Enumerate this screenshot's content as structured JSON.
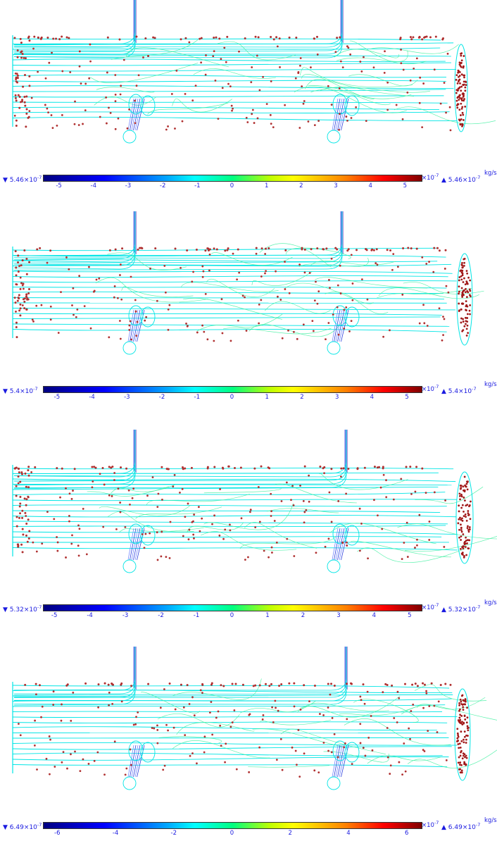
{
  "panels": [
    {
      "min_label": "5.46×10",
      "max_label": "5.46×10",
      "exponent": "-7",
      "axis_exponent": "×10",
      "unit": "kg/s",
      "ticks": [
        "-5",
        "-4",
        "-3",
        "-2",
        "-1",
        "0",
        "1",
        "2",
        "3",
        "4",
        "5"
      ],
      "tick_positions": [
        -5,
        -4,
        -3,
        -2,
        -1,
        0,
        1,
        2,
        3,
        4,
        5
      ],
      "range": [
        -5.46,
        5.46
      ]
    },
    {
      "min_label": "5.4×10",
      "max_label": "5.4×10",
      "exponent": "-7",
      "axis_exponent": "×10",
      "unit": "kg/s",
      "ticks": [
        "-5",
        "-4",
        "-3",
        "-2",
        "-1",
        "0",
        "1",
        "2",
        "3",
        "4",
        "5"
      ],
      "tick_positions": [
        -5,
        -4,
        -3,
        -2,
        -1,
        0,
        1,
        2,
        3,
        4,
        5
      ],
      "range": [
        -5.4,
        5.4
      ]
    },
    {
      "min_label": "5.32×10",
      "max_label": "5.32×10",
      "exponent": "-7",
      "axis_exponent": "×10",
      "unit": "kg/s",
      "ticks": [
        "-5",
        "-4",
        "-3",
        "-2",
        "-1",
        "0",
        "1",
        "2",
        "3",
        "4",
        "5"
      ],
      "tick_positions": [
        -5,
        -4,
        -3,
        -2,
        -1,
        0,
        1,
        2,
        3,
        4,
        5
      ],
      "range": [
        -5.32,
        5.32
      ]
    },
    {
      "min_label": "6.49×10",
      "max_label": "6.49×10",
      "exponent": "-7",
      "axis_exponent": "×10",
      "unit": "kg/s",
      "ticks": [
        "-6",
        "-4",
        "-2",
        "0",
        "2",
        "4",
        "6"
      ],
      "tick_positions": [
        -6,
        -4,
        -2,
        0,
        2,
        4,
        6
      ],
      "range": [
        -6.49,
        6.49
      ]
    }
  ],
  "colors": {
    "streamline_cyan": "#00e5e5",
    "streamline_green": "#40f0a0",
    "particle": "#b03030",
    "pipe_blue": "#3344dd",
    "label_blue": "#1a1ae0"
  }
}
